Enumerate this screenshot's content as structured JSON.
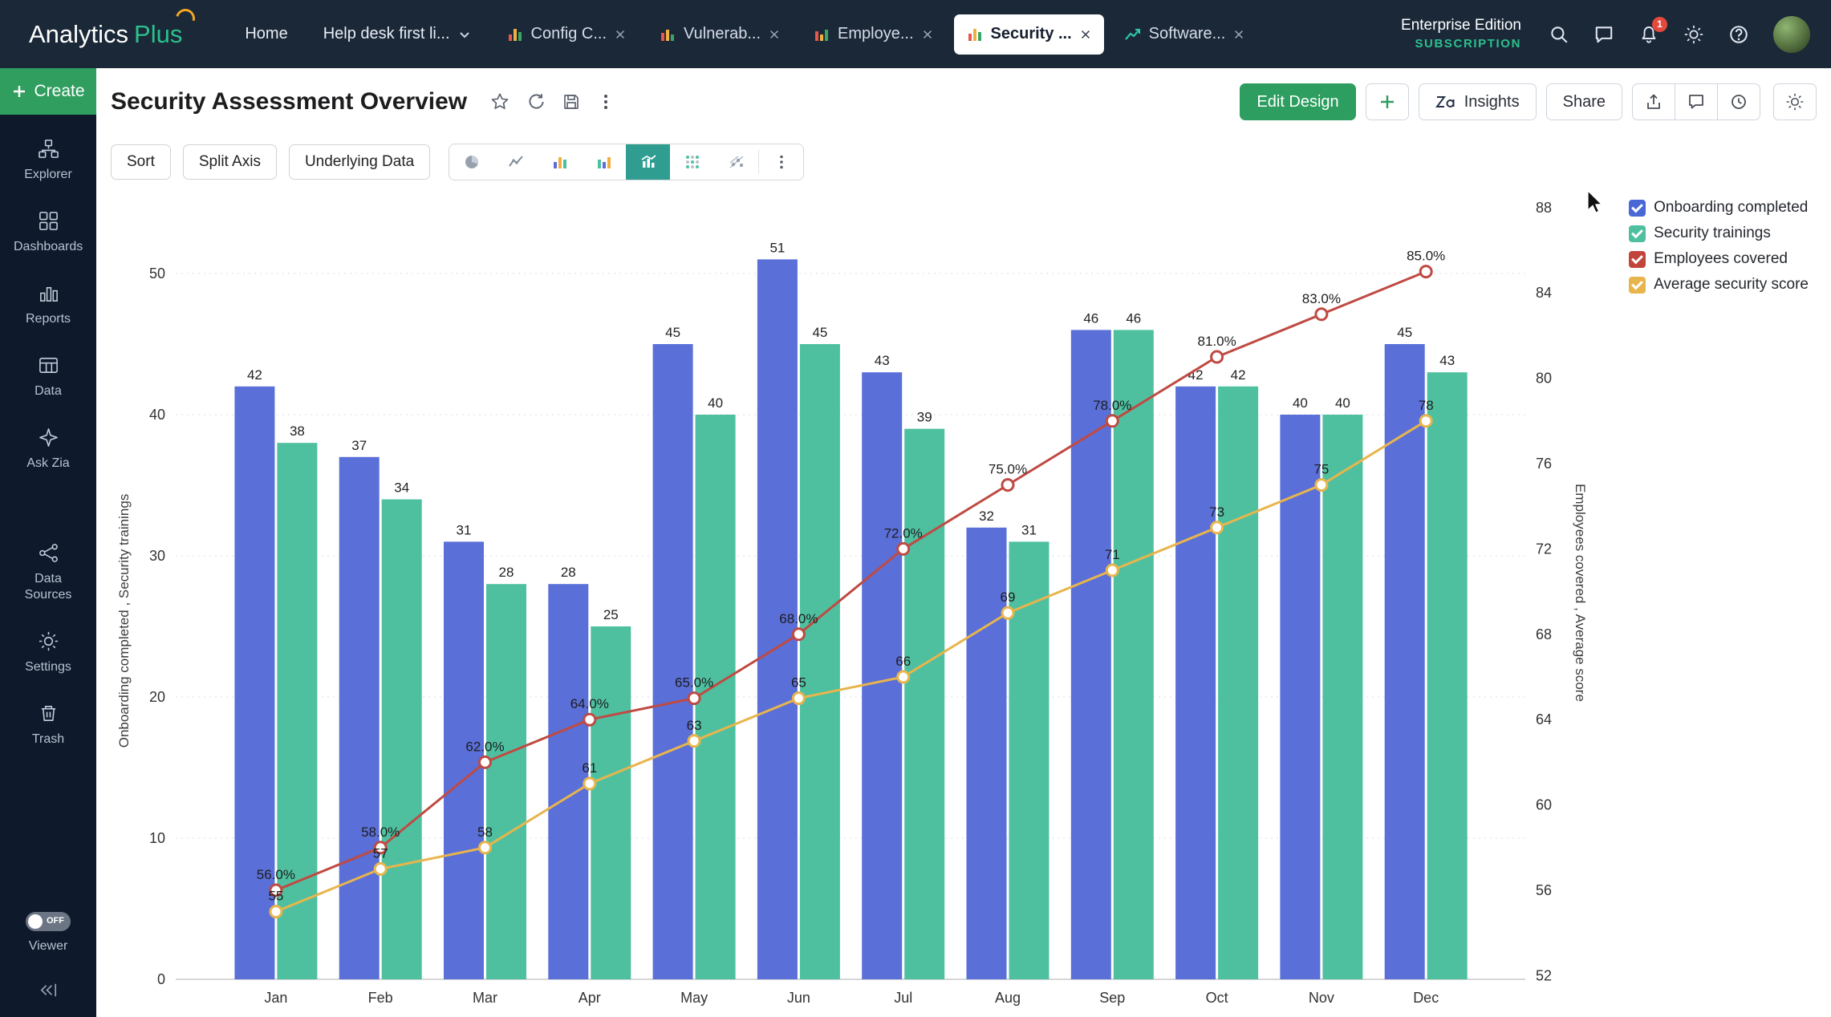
{
  "topbar": {
    "logo_text_1": "Analytics",
    "logo_text_2": "Plus",
    "nav_home": "Home",
    "workspace_selector": "Help desk first li...",
    "tabs": [
      {
        "label": "Config C..."
      },
      {
        "label": "Vulnerab..."
      },
      {
        "label": "Employe..."
      },
      {
        "label": "Security ..."
      },
      {
        "label": "Software..."
      }
    ],
    "edition_line1": "Enterprise Edition",
    "edition_line2": "SUBSCRIPTION",
    "notification_badge": "1"
  },
  "sidebar": {
    "create_label": "Create",
    "items": [
      {
        "label": "Explorer"
      },
      {
        "label": "Dashboards"
      },
      {
        "label": "Reports"
      },
      {
        "label": "Data"
      },
      {
        "label": "Ask Zia"
      },
      {
        "label": "Data Sources"
      },
      {
        "label": "Settings"
      },
      {
        "label": "Trash"
      }
    ],
    "viewer_toggle_state": "OFF",
    "viewer_label": "Viewer"
  },
  "header": {
    "title": "Security Assessment Overview",
    "edit_design_label": "Edit Design",
    "insights_label": "Insights",
    "share_label": "Share"
  },
  "toolbar": {
    "sort_label": "Sort",
    "split_axis_label": "Split Axis",
    "underlying_data_label": "Underlying Data"
  },
  "chart_data": {
    "type": "combo",
    "title": "Security Assessment Overview",
    "categories": [
      "Jan",
      "Feb",
      "Mar",
      "Apr",
      "May",
      "Jun",
      "Jul",
      "Aug",
      "Sep",
      "Oct",
      "Nov",
      "Dec"
    ],
    "series": [
      {
        "name": "Onboarding completed",
        "type": "bar",
        "axis": "left",
        "color": "#5a6fd8",
        "values": [
          42,
          37,
          31,
          28,
          45,
          51,
          43,
          32,
          46,
          42,
          40,
          45
        ],
        "labels": [
          "42",
          "37",
          "31",
          "28",
          "45",
          "51",
          "43",
          "32",
          "46",
          "42",
          "40",
          "45"
        ]
      },
      {
        "name": "Security trainings",
        "type": "bar",
        "axis": "left",
        "color": "#4ec0a0",
        "values": [
          38,
          34,
          28,
          25,
          40,
          45,
          39,
          31,
          46,
          42,
          40,
          43
        ],
        "labels": [
          "38",
          "34",
          "28",
          "25",
          "40",
          "45",
          "39",
          "31",
          "46",
          "42",
          "40",
          "43"
        ]
      },
      {
        "name": "Employees covered",
        "type": "line",
        "axis": "right",
        "color": "#bf4a43",
        "values": [
          56,
          58,
          62,
          64,
          65,
          68,
          72,
          75,
          78,
          81,
          83,
          85
        ],
        "labels": [
          "56.0%",
          "58.0%",
          "62.0%",
          "64.0%",
          "65.0%",
          "68.0%",
          "72.0%",
          "75.0%",
          "78.0%",
          "81.0%",
          "83.0%",
          "85.0%"
        ]
      },
      {
        "name": "Average security score",
        "type": "line",
        "axis": "right",
        "color": "#e8b54c",
        "values": [
          55,
          57,
          58,
          61,
          63,
          65,
          66,
          69,
          71,
          73,
          75,
          78
        ],
        "labels": [
          "55",
          "57",
          "58",
          "61",
          "63",
          "65",
          "66",
          "69",
          "71",
          "73",
          "75",
          "78"
        ]
      }
    ],
    "left_axis": {
      "label": "Onboarding completed , Security trainings",
      "min": 0,
      "max": 50,
      "ticks": [
        0,
        10,
        20,
        30,
        40,
        50
      ]
    },
    "right_axis": {
      "label": "Employees covered , Average score",
      "min": 52,
      "max": 88,
      "ticks": [
        52,
        56,
        60,
        64,
        68,
        72,
        76,
        80,
        84,
        88
      ]
    },
    "legend_position": "top-right",
    "grid": "dotted-horizontal",
    "legend": [
      {
        "label": "Onboarding completed",
        "color": "#4a67d6"
      },
      {
        "label": "Security trainings",
        "color": "#4ec0a0"
      },
      {
        "label": "Employees covered",
        "color": "#c2453c"
      },
      {
        "label": "Average security score",
        "color": "#e8b54c"
      }
    ]
  }
}
